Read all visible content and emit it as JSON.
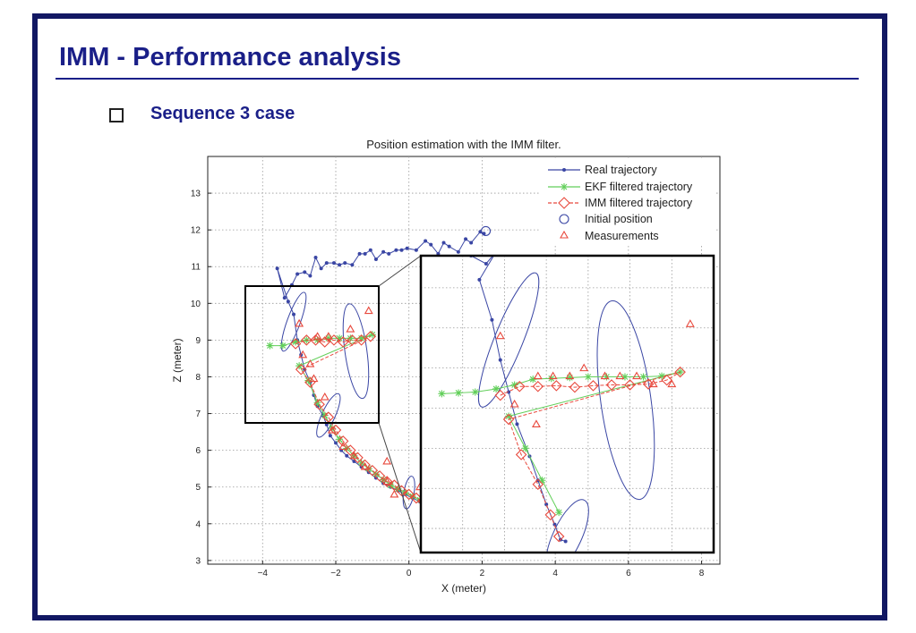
{
  "slide": {
    "title": "IMM - Performance analysis",
    "bullet": "Sequence 3 case"
  },
  "colors": {
    "frame": "#121863",
    "title": "#1a1f88",
    "real": "#3a46a4",
    "ekf": "#62cf5a",
    "imm": "#e8493d",
    "init": "#3a46a4",
    "meas": "#e8493d",
    "ellipse": "#3a46a4"
  },
  "chart_data": [
    {
      "type": "line",
      "title": "Position estimation with the IMM filter.",
      "xlabel": "X (meter)",
      "ylabel": "Z (meter)",
      "xlim": [
        -5.5,
        8.5
      ],
      "ylim": [
        2.9,
        14
      ],
      "xticks": [
        -4,
        -2,
        0,
        2,
        4,
        6,
        8
      ],
      "yticks": [
        3,
        4,
        5,
        6,
        7,
        8,
        9,
        10,
        11,
        12,
        13
      ],
      "grid": true,
      "legend_position": "top-right",
      "legend": [
        "Real trajectory",
        "EKF filtered trajectory",
        "IMM filtered trajectory",
        "Initial position",
        "Measurements"
      ],
      "series": [
        {
          "name": "Real trajectory",
          "x": [
            2.05,
            1.95,
            1.7,
            1.55,
            1.35,
            1.1,
            0.95,
            0.8,
            0.6,
            0.45,
            0.2,
            -0.05,
            -0.2,
            -0.35,
            -0.55,
            -0.7,
            -0.9,
            -1.05,
            -1.2,
            -1.35,
            -1.55,
            -1.75,
            -1.9,
            -2.05,
            -2.25,
            -2.4,
            -2.55,
            -2.7,
            -2.85,
            -3.05,
            -3.2,
            -3.4,
            -3.6,
            -3.3,
            -3.15,
            -3.05,
            -2.95,
            -2.85,
            -2.7,
            -2.6,
            -2.5,
            -2.35,
            -2.25,
            -2.15,
            -2.0,
            -1.85,
            -1.7,
            -1.5,
            -1.3,
            -1.1,
            -0.9,
            -0.7,
            -0.5,
            -0.3,
            -0.1,
            0.1,
            0.3,
            0.5
          ],
          "y": [
            11.9,
            11.95,
            11.65,
            11.75,
            11.4,
            11.55,
            11.65,
            11.35,
            11.6,
            11.7,
            11.45,
            11.5,
            11.45,
            11.45,
            11.35,
            11.4,
            11.2,
            11.45,
            11.35,
            11.35,
            11.05,
            11.1,
            11.05,
            11.1,
            11.1,
            10.95,
            11.25,
            10.75,
            10.85,
            10.8,
            10.5,
            10.15,
            10.95,
            10.05,
            9.7,
            9.0,
            8.6,
            8.2,
            7.85,
            7.5,
            7.2,
            6.95,
            6.7,
            6.4,
            6.2,
            6.0,
            5.85,
            5.7,
            5.55,
            5.4,
            5.25,
            5.1,
            5.0,
            4.9,
            4.8,
            4.7,
            4.6,
            4.5
          ]
        },
        {
          "name": "EKF filtered trajectory",
          "x": [
            -3.8,
            -3.45,
            -3.1,
            -2.8,
            -2.5,
            -2.2,
            -1.9,
            -1.6,
            -1.3,
            -1.0,
            -3.0,
            -2.75,
            -2.5,
            -2.3,
            -2.1,
            -1.9,
            -1.7,
            -1.5,
            -1.3,
            -1.1,
            -0.9,
            -0.7,
            -0.5,
            -0.3,
            -0.1,
            0.1,
            0.3,
            0.5
          ],
          "y": [
            8.85,
            8.85,
            8.95,
            9.0,
            9.0,
            9.05,
            9.05,
            9.05,
            9.05,
            9.15,
            8.3,
            7.9,
            7.3,
            6.95,
            6.6,
            6.3,
            6.05,
            5.85,
            5.65,
            5.5,
            5.35,
            5.2,
            5.05,
            4.95,
            4.85,
            4.75,
            4.65,
            4.55
          ]
        },
        {
          "name": "IMM filtered trajectory",
          "x": [
            -3.1,
            -2.8,
            -2.55,
            -2.3,
            -2.05,
            -1.8,
            -1.55,
            -1.3,
            -1.05,
            -2.95,
            -2.7,
            -2.45,
            -2.2,
            -2.0,
            -1.8,
            -1.6,
            -1.4,
            -1.2,
            -1.0,
            -0.8,
            -0.6,
            -0.4,
            -0.2,
            0.0,
            0.2,
            0.4
          ],
          "y": [
            8.9,
            9.0,
            9.0,
            8.95,
            9.0,
            8.95,
            9.0,
            9.0,
            9.1,
            8.2,
            7.85,
            7.25,
            6.9,
            6.55,
            6.25,
            6.0,
            5.8,
            5.6,
            5.45,
            5.3,
            5.15,
            5.05,
            4.9,
            4.8,
            4.7,
            4.6
          ]
        },
        {
          "name": "Initial position",
          "x": [
            2.1
          ],
          "y": [
            11.97
          ]
        },
        {
          "name": "Measurements",
          "x": [
            -3.0,
            -2.7,
            -2.5,
            -2.2,
            -1.6,
            -1.1,
            -0.6,
            -2.9,
            -2.6,
            -2.3,
            -2.1,
            -1.8,
            -1.5,
            -1.2,
            -0.6,
            -0.4,
            0.3
          ],
          "y": [
            9.45,
            8.35,
            9.1,
            9.1,
            9.3,
            9.8,
            5.7,
            8.6,
            7.95,
            7.45,
            6.55,
            6.1,
            5.85,
            5.55,
            5.15,
            4.8,
            5.0
          ]
        }
      ],
      "ellipses": [
        {
          "cx": -1.45,
          "cy": 8.7,
          "rx": 0.3,
          "ry": 1.3,
          "angle": -8
        },
        {
          "cx": -3.15,
          "cy": 9.5,
          "rx": 0.18,
          "ry": 0.85,
          "angle": 20
        },
        {
          "cx": -2.2,
          "cy": 6.95,
          "rx": 0.18,
          "ry": 0.65,
          "angle": 25
        },
        {
          "cx": 0.0,
          "cy": 4.85,
          "rx": 0.14,
          "ry": 0.45,
          "angle": 10
        }
      ],
      "zoom_region": {
        "xlim": [
          -4.0,
          -0.5
        ],
        "ylim": [
          6.7,
          10.4
        ]
      }
    },
    {
      "type": "line",
      "title": "",
      "xlim": [
        -4.0,
        -0.5
      ],
      "ylim": [
        6.7,
        10.4
      ],
      "grid": true,
      "series": [
        {
          "name": "Real trajectory",
          "x": [
            -3.4,
            -3.22,
            -3.1,
            -3.3,
            -3.15,
            -3.05,
            -2.95,
            -2.85,
            -2.7,
            -2.6,
            -2.5,
            -2.4,
            -2.33,
            -2.27
          ],
          "y": [
            10.4,
            10.3,
            10.45,
            10.1,
            9.6,
            9.1,
            8.7,
            8.3,
            7.9,
            7.6,
            7.3,
            7.05,
            6.86,
            6.84
          ]
        },
        {
          "name": "EKF filtered trajectory",
          "x": [
            -3.75,
            -3.55,
            -3.35,
            -3.1,
            -2.88,
            -2.66,
            -2.44,
            -2.22,
            -2.0,
            -1.78,
            -1.56,
            -1.34,
            -1.12,
            -0.9,
            -2.95,
            -2.75,
            -2.55,
            -2.35
          ],
          "y": [
            8.68,
            8.69,
            8.7,
            8.74,
            8.79,
            8.86,
            8.87,
            8.88,
            8.89,
            8.89,
            8.89,
            8.89,
            8.9,
            8.95,
            8.4,
            8.0,
            7.6,
            7.2
          ]
        },
        {
          "name": "IMM filtered trajectory",
          "x": [
            -3.05,
            -2.82,
            -2.6,
            -2.38,
            -2.16,
            -1.94,
            -1.72,
            -1.5,
            -1.28,
            -1.06,
            -0.9,
            -2.95,
            -2.8,
            -2.6,
            -2.45,
            -2.35
          ],
          "y": [
            8.66,
            8.77,
            8.77,
            8.78,
            8.76,
            8.78,
            8.79,
            8.79,
            8.8,
            8.85,
            8.95,
            8.36,
            7.92,
            7.55,
            7.17,
            6.9
          ]
        },
        {
          "name": "Measurements",
          "x": [
            -3.05,
            -2.62,
            -2.6,
            -2.42,
            -2.22,
            -2.05,
            -1.8,
            -1.62,
            -1.42,
            -1.22,
            -1.0,
            -0.78,
            -2.88
          ],
          "y": [
            9.4,
            8.3,
            8.9,
            8.9,
            8.9,
            9.0,
            8.9,
            8.9,
            8.9,
            8.8,
            8.8,
            9.55,
            8.55
          ]
        }
      ],
      "ellipses": [
        {
          "cx": -1.55,
          "cy": 8.6,
          "rx": 0.3,
          "ry": 1.25,
          "angle": -8
        },
        {
          "cx": -2.95,
          "cy": 9.35,
          "rx": 0.17,
          "ry": 0.9,
          "angle": 22
        },
        {
          "cx": -2.25,
          "cy": 6.9,
          "rx": 0.17,
          "ry": 0.5,
          "angle": 25
        }
      ]
    }
  ]
}
